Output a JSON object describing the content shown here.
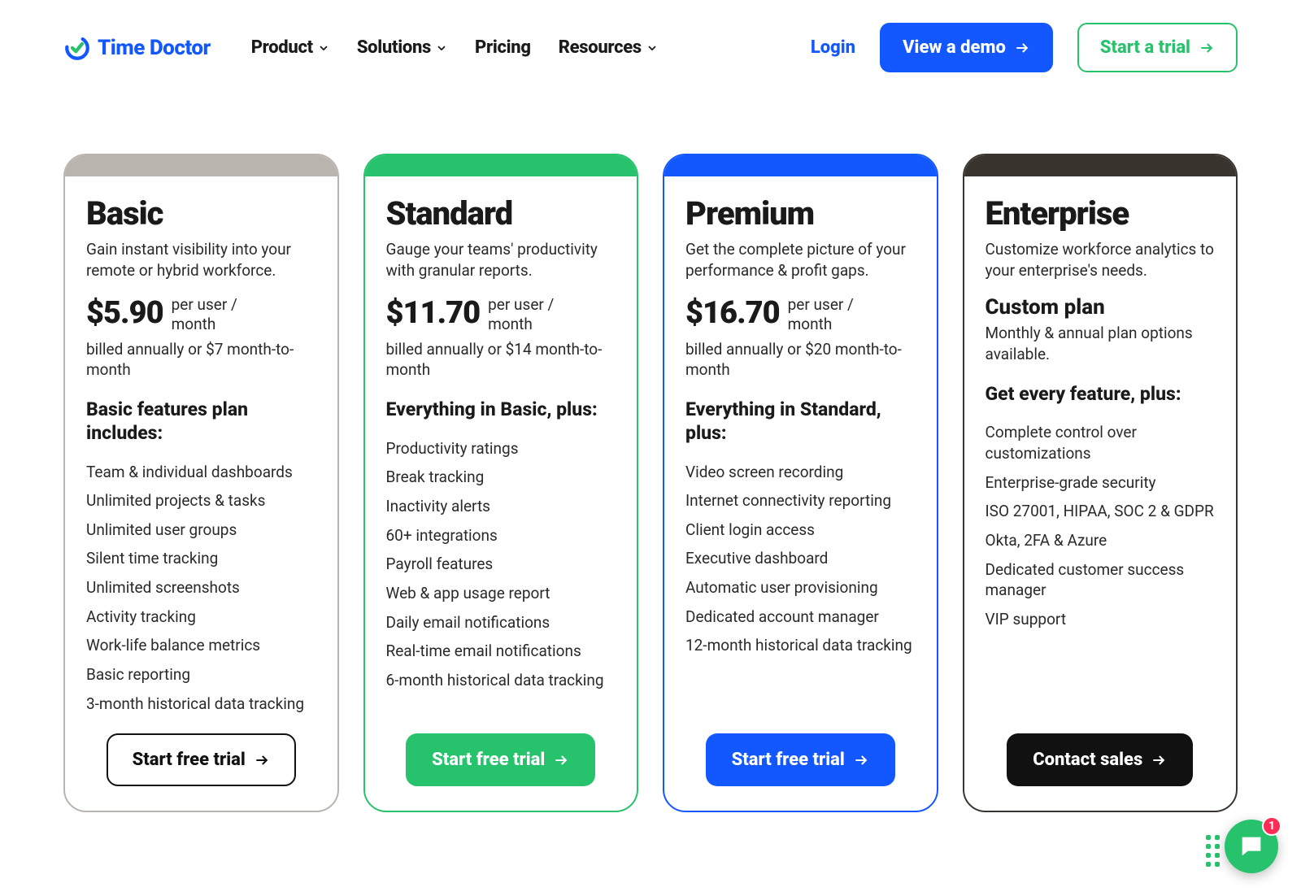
{
  "theme": {
    "brand_blue": "#1257ff",
    "brand_green": "#27c26c",
    "text": "#1a1a1a",
    "black": "#111111"
  },
  "nav": {
    "brand": "Time Doctor",
    "items": [
      {
        "label": "Product",
        "has_dropdown": true
      },
      {
        "label": "Solutions",
        "has_dropdown": true
      },
      {
        "label": "Pricing",
        "has_dropdown": false
      },
      {
        "label": "Resources",
        "has_dropdown": true
      }
    ],
    "login": "Login",
    "demo_btn": "View a demo",
    "trial_btn": "Start a trial"
  },
  "plans": [
    {
      "id": "basic",
      "name": "Basic",
      "desc": "Gain instant visibility into your remote or hybrid workforce.",
      "price": "$5.90",
      "price_unit": "per user / month",
      "billing": "billed annually or $7 month-to-month",
      "features_title": "Basic features plan includes:",
      "features": [
        "Team & individual dashboards",
        "Unlimited projects & tasks",
        "Unlimited user groups",
        "Silent time tracking",
        "Unlimited screenshots",
        "Activity tracking",
        "Work-life balance metrics",
        "Basic reporting",
        "3-month historical data tracking"
      ],
      "cta": "Start free trial",
      "cap_color": "#b9b4ad",
      "border_color": "#b9b4ad",
      "btn_style": "outline-black"
    },
    {
      "id": "standard",
      "name": "Standard",
      "desc": "Gauge your teams' productivity with granular reports.",
      "price": "$11.70",
      "price_unit": "per user / month",
      "billing": "billed annually or $14 month-to-month",
      "features_title": "Everything in Basic, plus:",
      "features": [
        "Productivity ratings",
        "Break tracking",
        "Inactivity alerts",
        "60+ integrations",
        "Payroll features",
        "Web & app usage report",
        "Daily email notifications",
        "Real-time email notifications",
        "6-month historical data tracking"
      ],
      "cta": "Start free trial",
      "cap_color": "#27c26c",
      "border_color": "#27c26c",
      "btn_style": "solid-green"
    },
    {
      "id": "premium",
      "name": "Premium",
      "desc": "Get the complete picture of your performance & profit gaps.",
      "price": "$16.70",
      "price_unit": "per user / month",
      "billing": "billed annually or $20 month-to-month",
      "features_title": "Everything in Standard, plus:",
      "features": [
        "Video screen recording",
        "Internet connectivity reporting",
        "Client login access",
        "Executive dashboard",
        "Automatic user provisioning",
        "Dedicated account manager",
        "12-month historical data tracking"
      ],
      "cta": "Start free trial",
      "cap_color": "#1257ff",
      "border_color": "#1257ff",
      "btn_style": "solid-blue"
    },
    {
      "id": "enterprise",
      "name": "Enterprise",
      "desc": "Customize workforce analytics to your enterprise's needs.",
      "custom_title": "Custom plan",
      "billing": "Monthly & annual plan options available.",
      "features_title": "Get every feature, plus:",
      "features": [
        "Complete control over customizations",
        "Enterprise-grade security",
        "ISO 27001, HIPAA, SOC 2 & GDPR",
        "Okta, 2FA & Azure",
        "Dedicated customer success manager",
        "VIP support"
      ],
      "cta": "Contact sales",
      "cap_color": "#3a342f",
      "border_color": "#3a342f",
      "btn_style": "solid-black"
    }
  ],
  "chat": {
    "badge": "1"
  }
}
